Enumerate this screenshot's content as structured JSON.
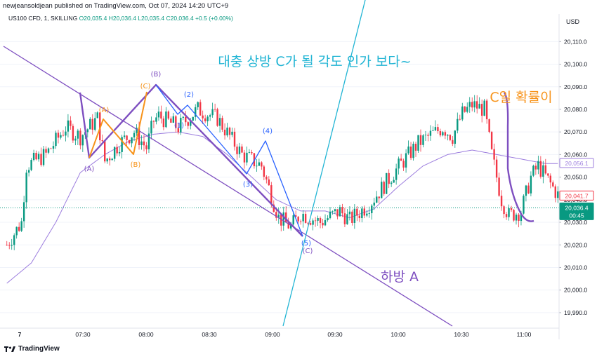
{
  "header": {
    "published": "newjeansoldjean published on TradingView.com, Oct 07, 2024 14:20 UTC+9"
  },
  "info": {
    "symbol": "US100 CFD, 1, SKILLING",
    "ohlc": "O20,035.4 H20,036.4 L20,035.4 C20,036.4 +0.5 (+0.00%)"
  },
  "footer": {
    "brand": "TradingView",
    "logo_icon": "tradingview-logo-icon"
  },
  "colors": {
    "up": "#089981",
    "down": "#f23645",
    "ma": "#9c7dde",
    "purple": "#7e4fc0",
    "orange": "#f7931a",
    "blue": "#2962ff",
    "cyan": "#22b5d4"
  },
  "chart_data": {
    "type": "candlestick",
    "currency": "USD",
    "x_ticks": [
      "7",
      "07:30",
      "08:00",
      "08:30",
      "09:00",
      "09:30",
      "10:00",
      "10:30",
      "11:00"
    ],
    "y_ticks": [
      "20,110.0",
      "20,100.0",
      "20,090.0",
      "20,080.0",
      "20,070.0",
      "20,060.0",
      "20,050.0",
      "20,040.0",
      "20,030.0",
      "20,020.0",
      "20,010.0",
      "20,000.0",
      "19,990.0"
    ],
    "ylim": [
      19985,
      20116
    ],
    "price_labels": {
      "last": "20,036.4",
      "countdown": "00:45",
      "ma_value": "20,056.1",
      "level": "20,041.7"
    },
    "close_path": [
      [
        0,
        20020
      ],
      [
        6,
        20030
      ],
      [
        8,
        20055
      ],
      [
        16,
        20060
      ],
      [
        24,
        20072
      ],
      [
        30,
        20068
      ],
      [
        37,
        20076
      ],
      [
        40,
        20057
      ],
      [
        46,
        20065
      ],
      [
        52,
        20070
      ],
      [
        57,
        20063
      ],
      [
        60,
        20075
      ],
      [
        62,
        20077
      ],
      [
        70,
        20072
      ],
      [
        78,
        20080
      ],
      [
        86,
        20076
      ],
      [
        96,
        20060
      ],
      [
        104,
        20055
      ],
      [
        111,
        20032
      ],
      [
        116,
        20028
      ],
      [
        120,
        20034
      ],
      [
        128,
        20030
      ],
      [
        136,
        20035
      ],
      [
        140,
        20031
      ],
      [
        148,
        20038
      ],
      [
        158,
        20052
      ],
      [
        168,
        20065
      ],
      [
        178,
        20072
      ],
      [
        182,
        20068
      ],
      [
        186,
        20078
      ],
      [
        190,
        20082
      ],
      [
        195,
        20080
      ],
      [
        198,
        20060
      ],
      [
        202,
        20040
      ],
      [
        205,
        20033
      ],
      [
        210,
        20035
      ],
      [
        214,
        20050
      ],
      [
        217,
        20055
      ],
      [
        222,
        20047
      ],
      [
        225,
        20042
      ]
    ],
    "ma_path": [
      [
        0,
        20003
      ],
      [
        10,
        20012
      ],
      [
        20,
        20030
      ],
      [
        30,
        20052
      ],
      [
        40,
        20060
      ],
      [
        50,
        20066
      ],
      [
        60,
        20069
      ],
      [
        70,
        20070
      ],
      [
        80,
        20068
      ],
      [
        90,
        20060
      ],
      [
        100,
        20050
      ],
      [
        110,
        20040
      ],
      [
        120,
        20035
      ],
      [
        130,
        20035
      ],
      [
        140,
        20032
      ],
      [
        150,
        20036
      ],
      [
        160,
        20046
      ],
      [
        170,
        20055
      ],
      [
        180,
        20060
      ],
      [
        190,
        20062
      ],
      [
        200,
        20060
      ],
      [
        210,
        20058
      ],
      [
        220,
        20056
      ],
      [
        225,
        20056
      ]
    ],
    "annotations": [
      {
        "text": "대충 상방 C가 될 각도 인가 보다~",
        "color": "cyan"
      },
      {
        "text": "C일 확률이",
        "color": "orange"
      },
      {
        "text": "하방 A",
        "color": "purple"
      }
    ],
    "wave_labels": [
      {
        "text": "(A)",
        "color": "purple"
      },
      {
        "text": "(B)",
        "color": "purple"
      },
      {
        "text": "(C)",
        "color": "purple"
      },
      {
        "text": "(A)",
        "color": "orange"
      },
      {
        "text": "(B)",
        "color": "orange"
      },
      {
        "text": "(C)",
        "color": "orange"
      },
      {
        "text": "(1)",
        "color": "blue"
      },
      {
        "text": "(2)",
        "color": "blue"
      },
      {
        "text": "(3)",
        "color": "blue"
      },
      {
        "text": "(4)",
        "color": "blue"
      },
      {
        "text": "(5)",
        "color": "blue"
      }
    ]
  }
}
